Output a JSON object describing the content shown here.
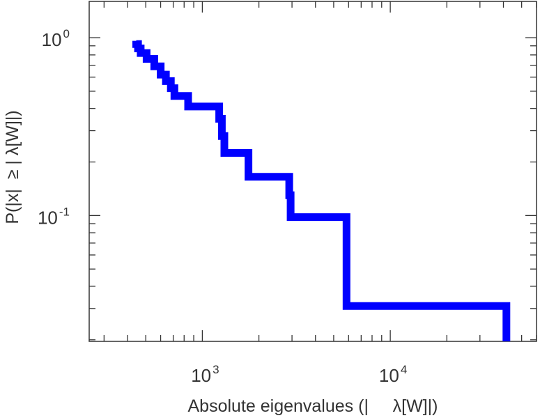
{
  "chart_data": {
    "type": "line",
    "subtype": "step-ccdf",
    "xscale": "log",
    "yscale": "log",
    "xlabel": "Absolute eigenvalues (|     λ[W]|)",
    "ylabel": "P(|x|  ≥ | λ[W]|)",
    "xlim": [
      250,
      60000
    ],
    "ylim": [
      0.0196,
      1.6
    ],
    "grid": false,
    "x_ticks": [
      {
        "value": 1000,
        "base": "10",
        "exp": "3"
      },
      {
        "value": 10000,
        "base": "10",
        "exp": "4"
      }
    ],
    "y_ticks": [
      {
        "value": 1,
        "base": "10",
        "exp": "0"
      },
      {
        "value": 0.1,
        "base": "10",
        "exp": "-1"
      }
    ],
    "series": [
      {
        "color": "#0000ff",
        "x": [
          445,
          445,
          455,
          455,
          470,
          470,
          505,
          505,
          555,
          555,
          600,
          600,
          640,
          640,
          680,
          680,
          710,
          710,
          840,
          840,
          1230,
          1230,
          1270,
          1270,
          1310,
          1310,
          1760,
          1760,
          2900,
          2900,
          2950,
          2950,
          5850,
          5850,
          41500,
          41500
        ],
        "y": [
          0.96,
          0.92,
          0.92,
          0.87,
          0.87,
          0.82,
          0.82,
          0.76,
          0.76,
          0.69,
          0.69,
          0.62,
          0.62,
          0.57,
          0.57,
          0.52,
          0.52,
          0.47,
          0.47,
          0.41,
          0.41,
          0.35,
          0.35,
          0.28,
          0.28,
          0.225,
          0.225,
          0.165,
          0.165,
          0.13,
          0.13,
          0.098,
          0.098,
          0.031,
          0.031,
          0.0196
        ]
      }
    ]
  }
}
